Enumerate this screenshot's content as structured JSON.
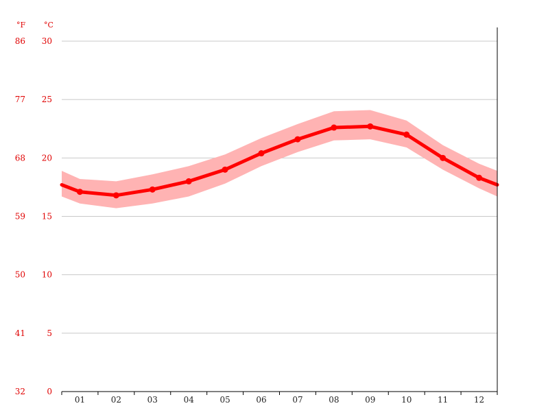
{
  "chart_data": {
    "type": "line",
    "title": "",
    "xlabel": "",
    "ylabel": "",
    "categories": [
      "01",
      "02",
      "03",
      "04",
      "05",
      "06",
      "07",
      "08",
      "09",
      "10",
      "11",
      "12"
    ],
    "series": [
      {
        "values": [
          17.1,
          16.8,
          17.3,
          18.0,
          19.0,
          20.4,
          21.6,
          22.6,
          22.7,
          22.0,
          20.0,
          18.3
        ],
        "color": "#ff0000"
      }
    ],
    "band": {
      "low": [
        16.1,
        15.7,
        16.1,
        16.7,
        17.8,
        19.3,
        20.5,
        21.5,
        21.6,
        20.9,
        19.0,
        17.4
      ],
      "high": [
        18.2,
        18.0,
        18.6,
        19.3,
        20.3,
        21.7,
        22.9,
        24.0,
        24.1,
        23.2,
        21.1,
        19.5
      ],
      "color": "#ffb3b3"
    },
    "edge_values": {
      "left": 17.7,
      "right": 17.7,
      "left_low": 16.7,
      "left_high": 18.9,
      "right_low": 16.7,
      "right_high": 18.9
    },
    "ylim": [
      0,
      30
    ],
    "y_ticks_c": [
      0,
      5,
      10,
      15,
      20,
      25,
      30
    ],
    "y_ticks_f": [
      32,
      41,
      50,
      59,
      68,
      77,
      86
    ],
    "y_unit_f": "°F",
    "y_unit_c": "°C",
    "grid": true,
    "gridline_color": "#c8c8c8"
  }
}
